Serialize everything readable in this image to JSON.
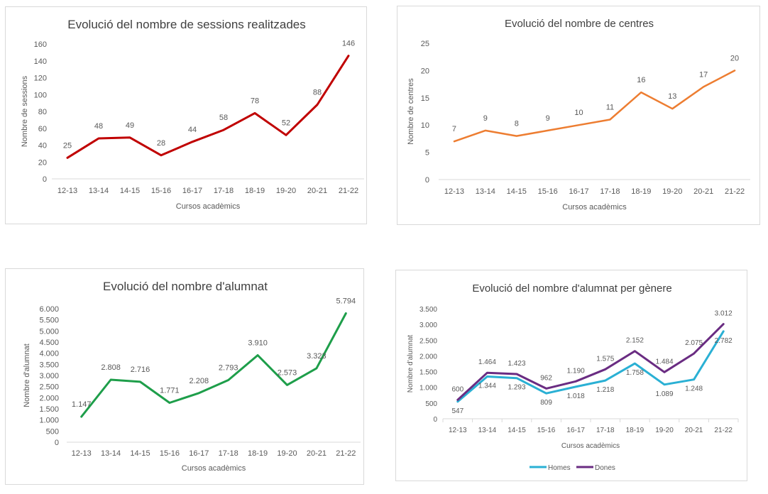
{
  "chart_data": [
    {
      "type": "line",
      "title": "Evolució del nombre de sessions realitzades",
      "xlabel": "Cursos acadèmics",
      "ylabel": "Nombre de sessions",
      "categories": [
        "12-13",
        "13-14",
        "14-15",
        "15-16",
        "16-17",
        "17-18",
        "18-19",
        "19-20",
        "20-21",
        "21-22"
      ],
      "yticks": [
        "0",
        "20",
        "40",
        "60",
        "80",
        "100",
        "120",
        "140",
        "160"
      ],
      "ylim": [
        0,
        160
      ],
      "series": [
        {
          "name": "Sessions",
          "color": "#c00000",
          "values": [
            25,
            48,
            49,
            28,
            44,
            58,
            78,
            52,
            88,
            146
          ],
          "labels": [
            "25",
            "48",
            "49",
            "28",
            "44",
            "58",
            "78",
            "52",
            "88",
            "146"
          ]
        }
      ],
      "legend": "none",
      "grid": false
    },
    {
      "type": "line",
      "title": "Evolució del nombre de centres",
      "xlabel": "Cursos acadèmics",
      "ylabel": "Nombre de centres",
      "categories": [
        "12-13",
        "13-14",
        "14-15",
        "15-16",
        "16-17",
        "17-18",
        "18-19",
        "19-20",
        "20-21",
        "21-22"
      ],
      "yticks": [
        "0",
        "5",
        "10",
        "15",
        "20",
        "25"
      ],
      "ylim": [
        0,
        25
      ],
      "series": [
        {
          "name": "Centres",
          "color": "#ed7d31",
          "values": [
            7,
            9,
            8,
            9,
            10,
            11,
            16,
            13,
            17,
            20
          ],
          "labels": [
            "7",
            "9",
            "8",
            "9",
            "10",
            "11",
            "16",
            "13",
            "17",
            "20"
          ]
        }
      ],
      "legend": "none",
      "grid": false
    },
    {
      "type": "line",
      "title": "Evolució del nombre d'alumnat",
      "xlabel": "Cursos acadèmics",
      "ylabel": "Nombre d'alumnat",
      "categories": [
        "12-13",
        "13-14",
        "14-15",
        "15-16",
        "16-17",
        "17-18",
        "18-19",
        "19-20",
        "20-21",
        "21-22"
      ],
      "yticks": [
        "0",
        "500",
        "1.000",
        "1.500",
        "2.000",
        "2.500",
        "3.000",
        "3.500",
        "4.000",
        "4.500",
        "5.000",
        "5.500",
        "6.000"
      ],
      "ylim": [
        0,
        6000
      ],
      "series": [
        {
          "name": "Alumnat",
          "color": "#1e9e4a",
          "values": [
            1147,
            2808,
            2716,
            1771,
            2208,
            2793,
            3910,
            2573,
            3323,
            5794
          ],
          "labels": [
            "1.147",
            "2.808",
            "2.716",
            "1.771",
            "2.208",
            "2.793",
            "3.910",
            "2.573",
            "3.323",
            "5.794"
          ]
        }
      ],
      "legend": "none",
      "grid": false
    },
    {
      "type": "line",
      "title": "Evolució del nombre d'alumnat per gènere",
      "xlabel": "Cursos acadèmics",
      "ylabel": "Nombre d'alumnat",
      "categories": [
        "12-13",
        "13-14",
        "14-15",
        "15-16",
        "16-17",
        "17-18",
        "18-19",
        "19-20",
        "20-21",
        "21-22"
      ],
      "yticks": [
        "0",
        "500",
        "1.000",
        "1.500",
        "2.000",
        "2.500",
        "3.000",
        "3.500"
      ],
      "ylim": [
        0,
        3500
      ],
      "series": [
        {
          "name": "Homes",
          "color": "#2ab0d4",
          "values": [
            547,
            1344,
            1293,
            809,
            1018,
            1218,
            1758,
            1089,
            1248,
            2782
          ],
          "labels": [
            "547",
            "1.344",
            "1.293",
            "809",
            "1.018",
            "1.218",
            "1.758",
            "1.089",
            "1.248",
            "2.782"
          ]
        },
        {
          "name": "Dones",
          "color": "#6a2c82",
          "values": [
            600,
            1464,
            1423,
            962,
            1190,
            1575,
            2152,
            1484,
            2075,
            3012
          ],
          "labels": [
            "600",
            "1.464",
            "1.423",
            "962",
            "1.190",
            "1.575",
            "2.152",
            "1.484",
            "2.075",
            "3.012"
          ]
        }
      ],
      "legend": "bottom",
      "grid": false
    }
  ]
}
